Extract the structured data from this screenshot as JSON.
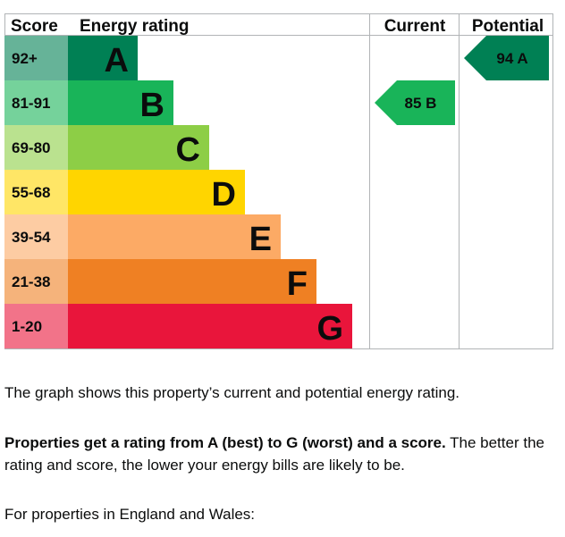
{
  "chart_data": {
    "type": "bar",
    "headers": {
      "score": "Score",
      "rating": "Energy rating",
      "current": "Current",
      "potential": "Potential"
    },
    "bands": [
      {
        "letter": "A",
        "range": "92+",
        "color": "#008054",
        "score_color": "#66b398"
      },
      {
        "letter": "B",
        "range": "81-91",
        "color": "#19b459",
        "score_color": "#75d29b"
      },
      {
        "letter": "C",
        "range": "69-80",
        "color": "#8dce46",
        "score_color": "#bae28f"
      },
      {
        "letter": "D",
        "range": "55-68",
        "color": "#ffd500",
        "score_color": "#ffe666"
      },
      {
        "letter": "E",
        "range": "39-54",
        "color": "#fcaa65",
        "score_color": "#fdcca3"
      },
      {
        "letter": "F",
        "range": "21-38",
        "color": "#ef8023",
        "score_color": "#f5b37b"
      },
      {
        "letter": "G",
        "range": "1-20",
        "color": "#e9153b",
        "score_color": "#f27389"
      }
    ],
    "current": {
      "score": 85,
      "band": "B",
      "label": "85 B"
    },
    "potential": {
      "score": 94,
      "band": "A",
      "label": "94 A"
    }
  },
  "text": {
    "line1": "The graph shows this property’s current and potential energy rating.",
    "line2_bold": "Properties get a rating from A (best) to G (worst) and a score.",
    "line2_rest": " The better the rating and score, the lower your energy bills are likely to be.",
    "line3": "For properties in England and Wales:"
  }
}
